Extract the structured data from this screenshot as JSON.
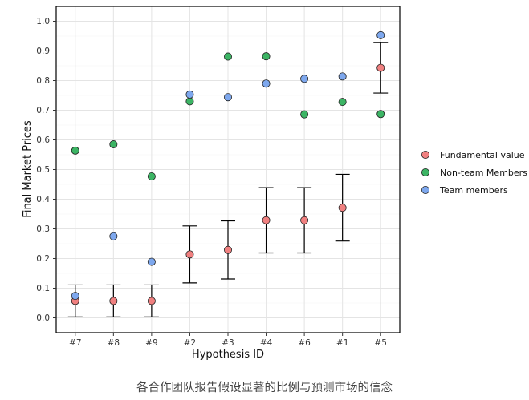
{
  "chart_data": {
    "type": "scatter",
    "xlabel": "Hypothesis ID",
    "ylabel": "Final Market Prices",
    "categories": [
      "#7",
      "#8",
      "#9",
      "#2",
      "#3",
      "#4",
      "#6",
      "#1",
      "#5"
    ],
    "ylim": [
      -0.05,
      1.05
    ],
    "yticks": [
      0.0,
      0.1,
      0.2,
      0.3,
      0.4,
      0.5,
      0.6,
      0.7,
      0.8,
      0.9,
      1.0
    ],
    "ytick_labels": [
      "0.0",
      "0.1",
      "0.2",
      "0.3",
      "0.4",
      "0.5",
      "0.6",
      "0.7",
      "0.8",
      "0.9",
      "1.0"
    ],
    "grid": true,
    "legend_position": "right",
    "series": [
      {
        "name": "Fundamental value",
        "color": "#F08080",
        "values": [
          0.057,
          0.057,
          0.057,
          0.214,
          0.229,
          0.329,
          0.329,
          0.371,
          0.843
        ],
        "error_low": [
          0.003,
          0.003,
          0.003,
          0.118,
          0.131,
          0.219,
          0.219,
          0.259,
          0.758
        ],
        "error_high": [
          0.111,
          0.111,
          0.111,
          0.31,
          0.327,
          0.439,
          0.439,
          0.484,
          0.928
        ]
      },
      {
        "name": "Non-team Members",
        "color": "#3CB464",
        "values": [
          0.564,
          0.585,
          0.477,
          0.73,
          0.881,
          0.882,
          0.686,
          0.728,
          0.687
        ]
      },
      {
        "name": "Team members",
        "color": "#7EA8EE",
        "values": [
          0.074,
          0.275,
          0.189,
          0.753,
          0.744,
          0.79,
          0.806,
          0.814,
          0.953
        ]
      }
    ]
  },
  "caption": "各合作团队报告假设显著的比例与预测市场的信念"
}
